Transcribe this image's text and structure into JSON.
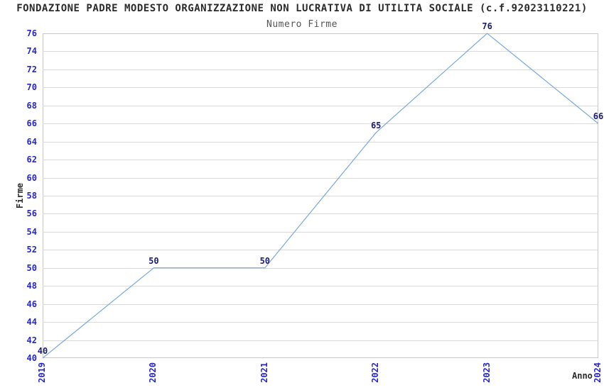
{
  "chart_data": {
    "type": "line",
    "title": "FONDAZIONE PADRE MODESTO ORGANIZZAZIONE NON LUCRATIVA DI UTILITA SOCIALE (c.f.92023110221)",
    "subtitle": "Numero Firme",
    "xlabel": "Anno",
    "ylabel": "Firme",
    "categories": [
      "2019",
      "2020",
      "2021",
      "2022",
      "2023",
      "2024"
    ],
    "series": [
      {
        "name": "Numero Firme",
        "values": [
          40,
          50,
          50,
          65,
          76,
          66
        ]
      }
    ],
    "point_labels": [
      "40",
      "50",
      "50",
      "65",
      "76",
      "66"
    ],
    "ylim": [
      40,
      76
    ],
    "ytick_step": 2,
    "grid": "on",
    "stripes": true,
    "legend_position": "none",
    "x_tick_rotation": -90,
    "colors": {
      "line": "#7aa8dc",
      "axis_tick_text": "#2626cc",
      "point_label_text": "#1c1c73",
      "stripe": "#f0f0f0",
      "gridline": "#dadada",
      "plot_border": "#c9c9c9",
      "title_text": "#2b2b2b",
      "background": "#ffffff"
    }
  }
}
